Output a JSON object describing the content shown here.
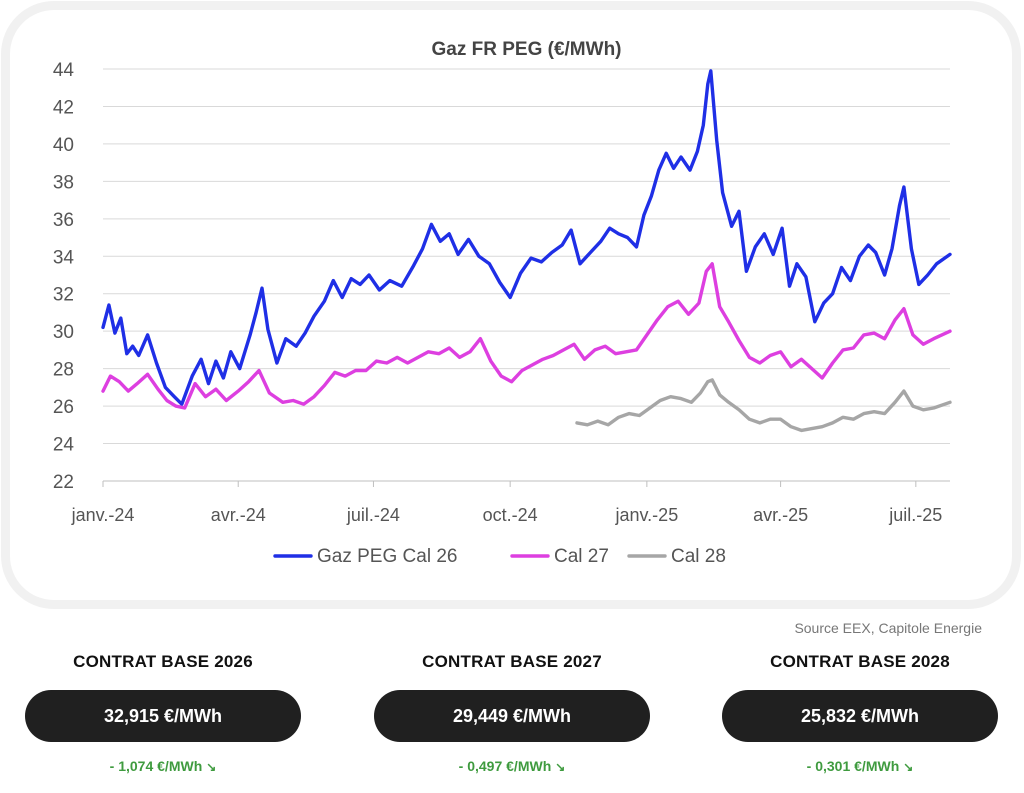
{
  "chart_data": {
    "type": "line",
    "title": "Gaz FR PEG (€/MWh)",
    "xlabel": "",
    "ylabel": "",
    "ylim": [
      22,
      44
    ],
    "yticks": [
      22,
      24,
      26,
      28,
      30,
      32,
      34,
      36,
      38,
      40,
      42,
      44
    ],
    "xlim": [
      "2024-01-01",
      "2025-07-24"
    ],
    "xticks": [
      {
        "date": "2024-01-01",
        "label": "janv.-24"
      },
      {
        "date": "2024-04-01",
        "label": "avr.-24"
      },
      {
        "date": "2024-07-01",
        "label": "juil.-24"
      },
      {
        "date": "2024-10-01",
        "label": "oct.-24"
      },
      {
        "date": "2025-01-01",
        "label": "janv.-25"
      },
      {
        "date": "2025-04-01",
        "label": "avr.-25"
      },
      {
        "date": "2025-07-01",
        "label": "juil.-25"
      }
    ],
    "grid": true,
    "legend_position": "bottom",
    "series": [
      {
        "name": "Gaz PEG Cal 26",
        "color": "#1f2fe6",
        "points": [
          [
            "2024-01-01",
            30.2
          ],
          [
            "2024-01-05",
            31.4
          ],
          [
            "2024-01-09",
            29.9
          ],
          [
            "2024-01-13",
            30.7
          ],
          [
            "2024-01-17",
            28.8
          ],
          [
            "2024-01-21",
            29.2
          ],
          [
            "2024-01-25",
            28.7
          ],
          [
            "2024-01-31",
            29.8
          ],
          [
            "2024-02-06",
            28.3
          ],
          [
            "2024-02-12",
            27.0
          ],
          [
            "2024-02-18",
            26.5
          ],
          [
            "2024-02-23",
            26.1
          ],
          [
            "2024-03-01",
            27.6
          ],
          [
            "2024-03-07",
            28.5
          ],
          [
            "2024-03-12",
            27.2
          ],
          [
            "2024-03-17",
            28.4
          ],
          [
            "2024-03-22",
            27.5
          ],
          [
            "2024-03-27",
            28.9
          ],
          [
            "2024-04-02",
            28.0
          ],
          [
            "2024-04-09",
            29.8
          ],
          [
            "2024-04-13",
            31.0
          ],
          [
            "2024-04-17",
            32.3
          ],
          [
            "2024-04-21",
            30.1
          ],
          [
            "2024-04-27",
            28.3
          ],
          [
            "2024-05-03",
            29.6
          ],
          [
            "2024-05-10",
            29.2
          ],
          [
            "2024-05-16",
            29.9
          ],
          [
            "2024-05-22",
            30.8
          ],
          [
            "2024-05-29",
            31.6
          ],
          [
            "2024-06-04",
            32.7
          ],
          [
            "2024-06-10",
            31.8
          ],
          [
            "2024-06-16",
            32.8
          ],
          [
            "2024-06-22",
            32.5
          ],
          [
            "2024-06-28",
            33.0
          ],
          [
            "2024-07-05",
            32.2
          ],
          [
            "2024-07-12",
            32.7
          ],
          [
            "2024-07-20",
            32.4
          ],
          [
            "2024-07-28",
            33.5
          ],
          [
            "2024-08-03",
            34.4
          ],
          [
            "2024-08-09",
            35.7
          ],
          [
            "2024-08-15",
            34.8
          ],
          [
            "2024-08-21",
            35.2
          ],
          [
            "2024-08-27",
            34.1
          ],
          [
            "2024-09-03",
            34.9
          ],
          [
            "2024-09-10",
            34.0
          ],
          [
            "2024-09-17",
            33.6
          ],
          [
            "2024-09-24",
            32.6
          ],
          [
            "2024-10-01",
            31.8
          ],
          [
            "2024-10-08",
            33.1
          ],
          [
            "2024-10-15",
            33.9
          ],
          [
            "2024-10-22",
            33.7
          ],
          [
            "2024-10-29",
            34.2
          ],
          [
            "2024-11-05",
            34.6
          ],
          [
            "2024-11-11",
            35.4
          ],
          [
            "2024-11-17",
            33.6
          ],
          [
            "2024-11-24",
            34.2
          ],
          [
            "2024-12-01",
            34.8
          ],
          [
            "2024-12-07",
            35.5
          ],
          [
            "2024-12-13",
            35.2
          ],
          [
            "2024-12-19",
            35.0
          ],
          [
            "2024-12-25",
            34.5
          ],
          [
            "2024-12-30",
            36.2
          ],
          [
            "2025-01-04",
            37.2
          ],
          [
            "2025-01-09",
            38.6
          ],
          [
            "2025-01-14",
            39.5
          ],
          [
            "2025-01-19",
            38.7
          ],
          [
            "2025-01-24",
            39.3
          ],
          [
            "2025-01-30",
            38.6
          ],
          [
            "2025-02-04",
            39.6
          ],
          [
            "2025-02-08",
            41.0
          ],
          [
            "2025-02-11",
            43.2
          ],
          [
            "2025-02-13",
            43.9
          ],
          [
            "2025-02-17",
            40.2
          ],
          [
            "2025-02-21",
            37.4
          ],
          [
            "2025-02-27",
            35.6
          ],
          [
            "2025-03-04",
            36.4
          ],
          [
            "2025-03-09",
            33.2
          ],
          [
            "2025-03-15",
            34.5
          ],
          [
            "2025-03-21",
            35.2
          ],
          [
            "2025-03-27",
            34.1
          ],
          [
            "2025-04-02",
            35.5
          ],
          [
            "2025-04-07",
            32.4
          ],
          [
            "2025-04-12",
            33.6
          ],
          [
            "2025-04-18",
            32.9
          ],
          [
            "2025-04-24",
            30.5
          ],
          [
            "2025-04-30",
            31.5
          ],
          [
            "2025-05-06",
            32.0
          ],
          [
            "2025-05-12",
            33.4
          ],
          [
            "2025-05-18",
            32.7
          ],
          [
            "2025-05-24",
            34.0
          ],
          [
            "2025-05-30",
            34.6
          ],
          [
            "2025-06-04",
            34.2
          ],
          [
            "2025-06-10",
            33.0
          ],
          [
            "2025-06-15",
            34.4
          ],
          [
            "2025-06-20",
            36.7
          ],
          [
            "2025-06-23",
            37.7
          ],
          [
            "2025-06-28",
            34.4
          ],
          [
            "2025-07-03",
            32.5
          ],
          [
            "2025-07-09",
            33.0
          ],
          [
            "2025-07-15",
            33.6
          ],
          [
            "2025-07-24",
            34.1
          ]
        ]
      },
      {
        "name": "Cal 27",
        "color": "#dd3fe0",
        "points": [
          [
            "2024-01-01",
            26.8
          ],
          [
            "2024-01-06",
            27.6
          ],
          [
            "2024-01-12",
            27.3
          ],
          [
            "2024-01-18",
            26.8
          ],
          [
            "2024-01-24",
            27.2
          ],
          [
            "2024-01-31",
            27.7
          ],
          [
            "2024-02-07",
            26.9
          ],
          [
            "2024-02-13",
            26.3
          ],
          [
            "2024-02-19",
            26.0
          ],
          [
            "2024-02-25",
            25.9
          ],
          [
            "2024-03-03",
            27.2
          ],
          [
            "2024-03-10",
            26.5
          ],
          [
            "2024-03-17",
            26.9
          ],
          [
            "2024-03-24",
            26.3
          ],
          [
            "2024-04-01",
            26.8
          ],
          [
            "2024-04-08",
            27.3
          ],
          [
            "2024-04-15",
            27.9
          ],
          [
            "2024-04-22",
            26.7
          ],
          [
            "2024-05-01",
            26.2
          ],
          [
            "2024-05-08",
            26.3
          ],
          [
            "2024-05-15",
            26.1
          ],
          [
            "2024-05-22",
            26.5
          ],
          [
            "2024-05-29",
            27.1
          ],
          [
            "2024-06-05",
            27.8
          ],
          [
            "2024-06-12",
            27.6
          ],
          [
            "2024-06-19",
            27.9
          ],
          [
            "2024-06-26",
            27.9
          ],
          [
            "2024-07-03",
            28.4
          ],
          [
            "2024-07-10",
            28.3
          ],
          [
            "2024-07-17",
            28.6
          ],
          [
            "2024-07-24",
            28.3
          ],
          [
            "2024-07-31",
            28.6
          ],
          [
            "2024-08-07",
            28.9
          ],
          [
            "2024-08-14",
            28.8
          ],
          [
            "2024-08-21",
            29.1
          ],
          [
            "2024-08-28",
            28.6
          ],
          [
            "2024-09-04",
            28.9
          ],
          [
            "2024-09-11",
            29.6
          ],
          [
            "2024-09-18",
            28.4
          ],
          [
            "2024-09-25",
            27.6
          ],
          [
            "2024-10-02",
            27.3
          ],
          [
            "2024-10-09",
            27.9
          ],
          [
            "2024-10-16",
            28.2
          ],
          [
            "2024-10-23",
            28.5
          ],
          [
            "2024-10-30",
            28.7
          ],
          [
            "2024-11-06",
            29.0
          ],
          [
            "2024-11-13",
            29.3
          ],
          [
            "2024-11-20",
            28.5
          ],
          [
            "2024-11-27",
            29.0
          ],
          [
            "2024-12-04",
            29.2
          ],
          [
            "2024-12-11",
            28.8
          ],
          [
            "2024-12-18",
            28.9
          ],
          [
            "2024-12-25",
            29.0
          ],
          [
            "2025-01-01",
            29.8
          ],
          [
            "2025-01-08",
            30.6
          ],
          [
            "2025-01-15",
            31.3
          ],
          [
            "2025-01-22",
            31.6
          ],
          [
            "2025-01-29",
            30.9
          ],
          [
            "2025-02-05",
            31.5
          ],
          [
            "2025-02-10",
            33.2
          ],
          [
            "2025-02-14",
            33.6
          ],
          [
            "2025-02-19",
            31.3
          ],
          [
            "2025-02-25",
            30.5
          ],
          [
            "2025-03-04",
            29.5
          ],
          [
            "2025-03-11",
            28.6
          ],
          [
            "2025-03-18",
            28.3
          ],
          [
            "2025-03-25",
            28.7
          ],
          [
            "2025-04-01",
            28.9
          ],
          [
            "2025-04-08",
            28.1
          ],
          [
            "2025-04-15",
            28.5
          ],
          [
            "2025-04-22",
            28.0
          ],
          [
            "2025-04-29",
            27.5
          ],
          [
            "2025-05-06",
            28.3
          ],
          [
            "2025-05-13",
            29.0
          ],
          [
            "2025-05-20",
            29.1
          ],
          [
            "2025-05-27",
            29.8
          ],
          [
            "2025-06-03",
            29.9
          ],
          [
            "2025-06-10",
            29.6
          ],
          [
            "2025-06-17",
            30.6
          ],
          [
            "2025-06-23",
            31.2
          ],
          [
            "2025-06-29",
            29.8
          ],
          [
            "2025-07-06",
            29.3
          ],
          [
            "2025-07-13",
            29.6
          ],
          [
            "2025-07-24",
            30.0
          ]
        ]
      },
      {
        "name": "Cal 28",
        "color": "#a6a6a6",
        "points": [
          [
            "2024-11-15",
            25.1
          ],
          [
            "2024-11-22",
            25.0
          ],
          [
            "2024-11-29",
            25.2
          ],
          [
            "2024-12-06",
            25.0
          ],
          [
            "2024-12-13",
            25.4
          ],
          [
            "2024-12-20",
            25.6
          ],
          [
            "2024-12-27",
            25.5
          ],
          [
            "2025-01-03",
            25.9
          ],
          [
            "2025-01-10",
            26.3
          ],
          [
            "2025-01-17",
            26.5
          ],
          [
            "2025-01-24",
            26.4
          ],
          [
            "2025-01-31",
            26.2
          ],
          [
            "2025-02-06",
            26.7
          ],
          [
            "2025-02-11",
            27.3
          ],
          [
            "2025-02-14",
            27.4
          ],
          [
            "2025-02-19",
            26.6
          ],
          [
            "2025-02-25",
            26.2
          ],
          [
            "2025-03-04",
            25.8
          ],
          [
            "2025-03-11",
            25.3
          ],
          [
            "2025-03-18",
            25.1
          ],
          [
            "2025-03-25",
            25.3
          ],
          [
            "2025-04-01",
            25.3
          ],
          [
            "2025-04-08",
            24.9
          ],
          [
            "2025-04-15",
            24.7
          ],
          [
            "2025-04-22",
            24.8
          ],
          [
            "2025-04-29",
            24.9
          ],
          [
            "2025-05-06",
            25.1
          ],
          [
            "2025-05-13",
            25.4
          ],
          [
            "2025-05-20",
            25.3
          ],
          [
            "2025-05-27",
            25.6
          ],
          [
            "2025-06-03",
            25.7
          ],
          [
            "2025-06-10",
            25.6
          ],
          [
            "2025-06-17",
            26.2
          ],
          [
            "2025-06-23",
            26.8
          ],
          [
            "2025-06-29",
            26.0
          ],
          [
            "2025-07-06",
            25.8
          ],
          [
            "2025-07-13",
            25.9
          ],
          [
            "2025-07-24",
            26.2
          ]
        ]
      }
    ]
  },
  "source": "Source EEX, Capitole Energie",
  "contracts": [
    {
      "title": "CONTRAT BASE 2026",
      "price": "32,915 €/MWh",
      "change": "- 1,074 €/MWh",
      "arrow": "↘",
      "change_color": "#3f9b3f"
    },
    {
      "title": "CONTRAT BASE 2027",
      "price": "29,449 €/MWh",
      "change": "- 0,497  €/MWh",
      "arrow": "↘",
      "change_color": "#3f9b3f"
    },
    {
      "title": "CONTRAT BASE 2028",
      "price": "25,832 €/MWh",
      "change": "- 0,301 €/MWh",
      "arrow": "↘",
      "change_color": "#3f9b3f"
    }
  ]
}
